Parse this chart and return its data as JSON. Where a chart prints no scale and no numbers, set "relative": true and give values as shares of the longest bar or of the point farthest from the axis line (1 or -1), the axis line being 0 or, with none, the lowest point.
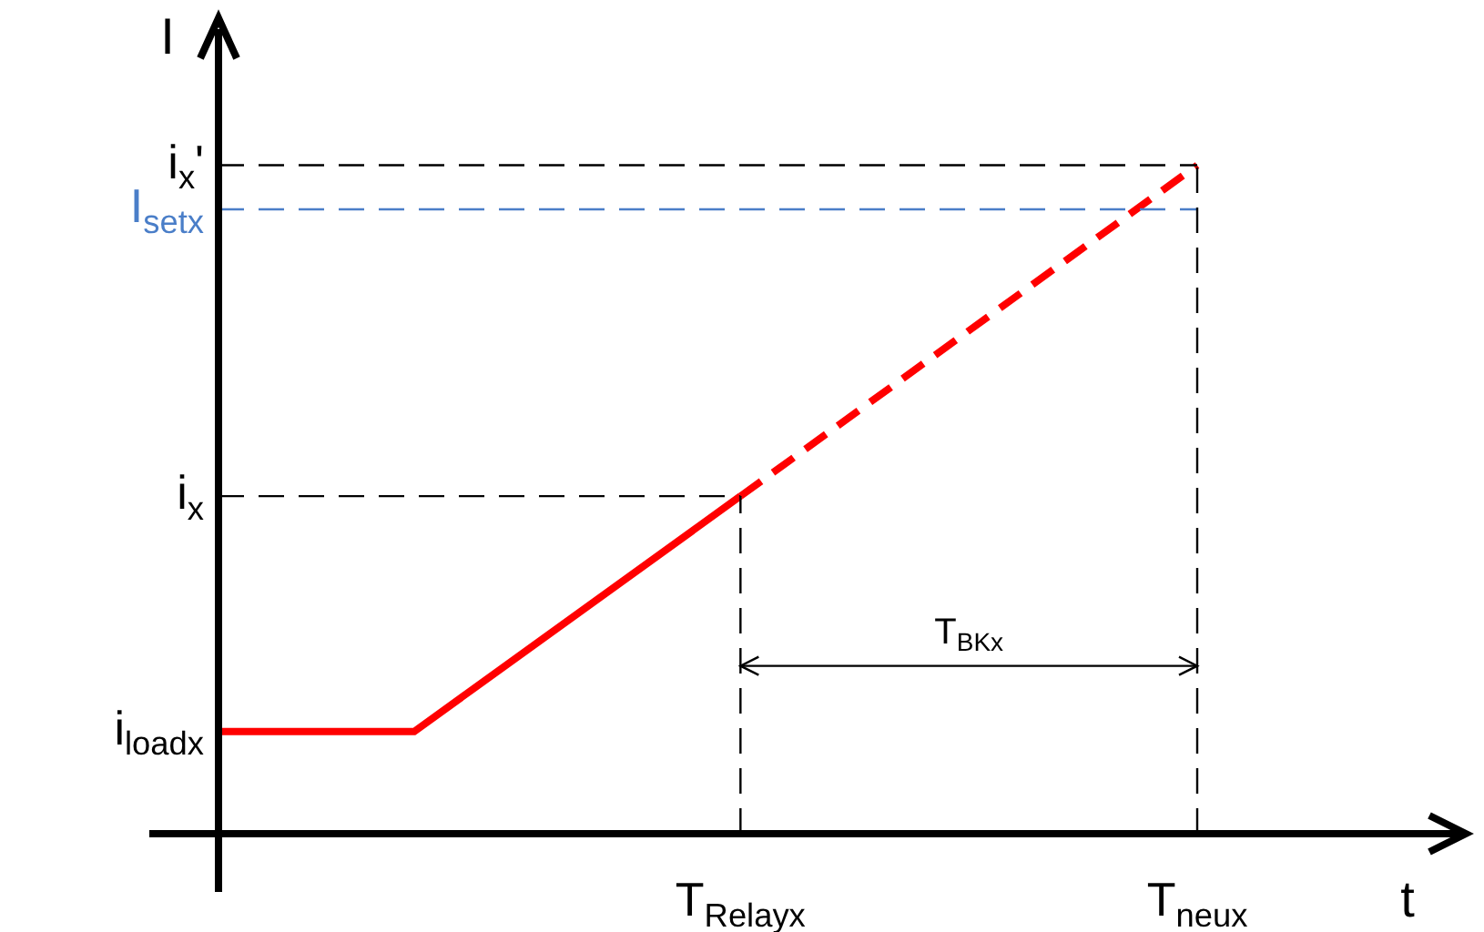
{
  "chart_data": {
    "type": "line",
    "relative": true,
    "xlabel": "t",
    "ylabel": "I",
    "categories": [
      null,
      null,
      null,
      null,
      null,
      null,
      null,
      null,
      "T$_{Relayx}$",
      null,
      null,
      null,
      null,
      null,
      null,
      "T$_{neux}$",
      null,
      null,
      null
    ],
    "series": [
      {
        "color": "#ff0000",
        "line_style": "solid",
        "values": [
          0.153,
          null,
          null,
          0.153,
          null,
          null,
          null,
          null,
          0.505,
          null,
          null,
          null,
          null,
          null,
          null,
          null,
          null,
          null,
          null
        ]
      },
      {
        "color": "#ff0000",
        "line_style": "dashed",
        "values": [
          null,
          null,
          null,
          null,
          null,
          null,
          null,
          null,
          0.505,
          null,
          null,
          null,
          null,
          null,
          null,
          1,
          null,
          null,
          null
        ]
      }
    ],
    "ref_lines": [
      {
        "axis": "y",
        "value": 0.505,
        "label": "i$_{x}$",
        "color": "#000000",
        "line_style": "dashed"
      },
      {
        "axis": "y",
        "value": 1,
        "label": "i$_{x}$'",
        "color": "#000000",
        "line_style": "dashed"
      },
      {
        "axis": "y",
        "value": 0.934,
        "label": "I$_{setx}$",
        "color": "#4a7ec8",
        "line_style": "dashed"
      },
      {
        "axis": "x",
        "value": "T$_{Relayx}$",
        "color": "#000000",
        "line_style": "dashed"
      },
      {
        "axis": "x",
        "value": "T$_{neux}$",
        "color": "#000000",
        "line_style": "dashed"
      }
    ],
    "annotations": [
      "i$_{loadx}$",
      "T$_{BKx}$"
    ],
    "legend": false,
    "marker": "none"
  }
}
